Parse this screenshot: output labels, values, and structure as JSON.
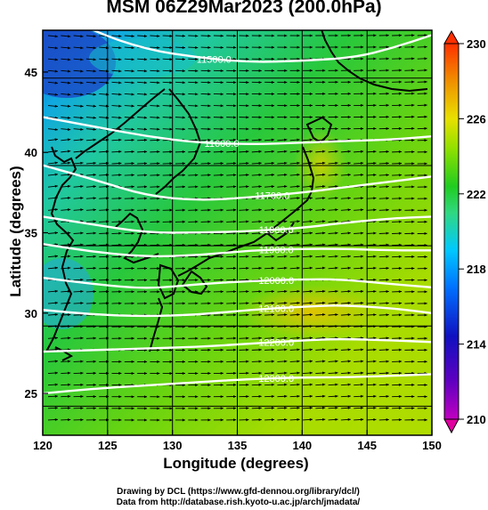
{
  "title": "MSM 06Z29Mar2023 (200.0hPa)",
  "xlabel": "Longitude (degrees)",
  "ylabel": "Latitude  (degrees)",
  "credits": {
    "line1": "Drawing by DCL (https://www.gfd-dennou.org/library/dcl/)",
    "line2": "Data from http://database.rish.kyoto-u.ac.jp/arch/jmadata/"
  },
  "chart_data": {
    "type": "heatmap",
    "xlim": [
      120,
      150
    ],
    "ylim": [
      22.4,
      47.6
    ],
    "x_ticks": [
      {
        "value": 120,
        "label": "120"
      },
      {
        "value": 125,
        "label": "125"
      },
      {
        "value": 130,
        "label": "130"
      },
      {
        "value": 135,
        "label": "135"
      },
      {
        "value": 140,
        "label": "140"
      },
      {
        "value": 145,
        "label": "145"
      },
      {
        "value": 150,
        "label": "150"
      }
    ],
    "y_ticks": [
      {
        "value": 25,
        "label": "25"
      },
      {
        "value": 30,
        "label": "30"
      },
      {
        "value": 35,
        "label": "35"
      },
      {
        "value": 40,
        "label": "40"
      },
      {
        "value": 45,
        "label": "45"
      }
    ],
    "grid": true,
    "colorbar": {
      "min": 210,
      "max": 230,
      "ticks": [
        {
          "value": 210,
          "label": "210"
        },
        {
          "value": 214,
          "label": "214"
        },
        {
          "value": 218,
          "label": "218"
        },
        {
          "value": 222,
          "label": "222"
        },
        {
          "value": 226,
          "label": "226"
        },
        {
          "value": 230,
          "label": "230"
        }
      ],
      "colors": [
        "#c000c0",
        "#1010c0",
        "#0070ff",
        "#00c8ff",
        "#30d880",
        "#20cc20",
        "#90e000",
        "#e8e000",
        "#f09000",
        "#ff3000"
      ]
    },
    "contours": [
      {
        "label": "11500.0",
        "label_lon": 133.2,
        "points": [
          [
            120,
            49.2
          ],
          [
            124,
            47.5
          ],
          [
            128,
            46.4
          ],
          [
            132,
            45.9
          ],
          [
            136,
            45.6
          ],
          [
            140,
            45.7
          ],
          [
            144,
            45.9
          ],
          [
            147,
            46.5
          ],
          [
            150,
            47.3
          ]
        ]
      },
      {
        "label": "11600.0",
        "label_lon": 133.8,
        "points": [
          [
            120,
            42.2
          ],
          [
            124,
            41.6
          ],
          [
            128,
            41.0
          ],
          [
            132,
            40.6
          ],
          [
            136,
            40.5
          ],
          [
            140,
            40.6
          ],
          [
            143,
            40.7
          ],
          [
            147,
            40.8
          ],
          [
            150,
            41.0
          ]
        ]
      },
      {
        "label": "11700.0",
        "label_lon": 137.7,
        "points": [
          [
            120,
            39.2
          ],
          [
            124,
            38.3
          ],
          [
            128,
            37.3
          ],
          [
            132,
            37.0
          ],
          [
            136,
            37.2
          ],
          [
            140,
            37.5
          ],
          [
            143,
            37.8
          ],
          [
            147,
            38.2
          ],
          [
            150,
            38.5
          ]
        ]
      },
      {
        "label": "11800.0",
        "label_lon": 138.0,
        "points": [
          [
            120,
            36.0
          ],
          [
            124,
            35.5
          ],
          [
            128,
            35.0
          ],
          [
            132,
            35.0
          ],
          [
            136,
            35.1
          ],
          [
            140,
            35.3
          ],
          [
            143,
            35.6
          ],
          [
            147,
            35.9
          ],
          [
            150,
            36.0
          ]
        ]
      },
      {
        "label": "11900.0",
        "label_lon": 138.0,
        "points": [
          [
            120,
            34.3
          ],
          [
            124,
            33.8
          ],
          [
            128,
            33.5
          ],
          [
            132,
            33.6
          ],
          [
            136,
            33.9
          ],
          [
            140,
            34.0
          ],
          [
            143,
            34.0
          ],
          [
            147,
            33.9
          ],
          [
            150,
            33.9
          ]
        ]
      },
      {
        "label": "12000.0",
        "label_lon": 138.0,
        "points": [
          [
            120,
            32.2
          ],
          [
            124,
            31.8
          ],
          [
            128,
            31.5
          ],
          [
            132,
            31.8
          ],
          [
            136,
            32.0
          ],
          [
            140,
            32.1
          ],
          [
            143,
            32.1
          ],
          [
            147,
            31.8
          ],
          [
            150,
            31.6
          ]
        ]
      },
      {
        "label": "12100.0",
        "label_lon": 138.0,
        "points": [
          [
            120,
            30.2
          ],
          [
            124,
            29.9
          ],
          [
            128,
            29.8
          ],
          [
            132,
            29.9
          ],
          [
            136,
            30.2
          ],
          [
            140,
            30.4
          ],
          [
            143,
            30.5
          ],
          [
            147,
            30.3
          ],
          [
            150,
            30.0
          ]
        ]
      },
      {
        "label": "12200.0",
        "label_lon": 138.0,
        "points": [
          [
            120,
            27.6
          ],
          [
            124,
            27.7
          ],
          [
            128,
            27.8
          ],
          [
            132,
            27.9
          ],
          [
            136,
            28.1
          ],
          [
            140,
            28.3
          ],
          [
            143,
            28.4
          ],
          [
            147,
            28.3
          ],
          [
            150,
            28.2
          ]
        ]
      },
      {
        "label": "12300.0",
        "label_lon": 138.0,
        "points": [
          [
            120,
            25.0
          ],
          [
            124,
            25.3
          ],
          [
            128,
            25.5
          ],
          [
            132,
            25.7
          ],
          [
            136,
            25.9
          ],
          [
            140,
            26.0
          ],
          [
            143,
            26.0
          ],
          [
            147,
            26.1
          ],
          [
            150,
            26.2
          ]
        ]
      }
    ]
  }
}
